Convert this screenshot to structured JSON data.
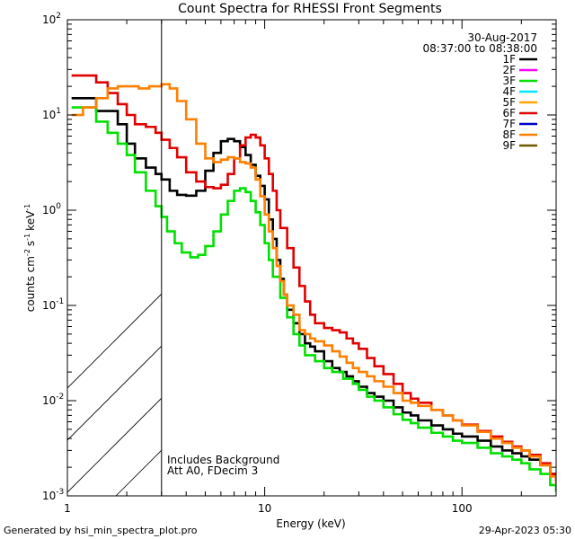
{
  "chart_data": {
    "type": "line",
    "title": "Count Spectra for RHESSI Front Segments",
    "xlabel": "Energy (keV)",
    "ylabel": "counts cm-2 s-1 keV-1",
    "xscale": "log",
    "yscale": "log",
    "xlim": [
      1,
      300
    ],
    "ylim": [
      0.001,
      100
    ],
    "x_ticks": [
      {
        "value": 10,
        "label": "10"
      },
      {
        "value": 100,
        "label": "100"
      }
    ],
    "y_ticks": [
      {
        "value": 0.001,
        "base": "10",
        "exp": "-3"
      },
      {
        "value": 0.01,
        "base": "10",
        "exp": "-2"
      },
      {
        "value": 0.1,
        "base": "10",
        "exp": "-1"
      },
      {
        "value": 1,
        "base": "10",
        "exp": "0"
      },
      {
        "value": 10,
        "base": "10",
        "exp": "1"
      },
      {
        "value": 100,
        "base": "10",
        "exp": "2"
      }
    ],
    "axis_start_label": "1",
    "attenuator_cutoff_keV": 3,
    "date": "30-Aug-2017",
    "time_range": "08:37:00 to 08:38:00",
    "annotations": [
      "Includes Background",
      "Att A0, FDecim 3"
    ],
    "legend": [
      {
        "name": "1F",
        "color": "#000000"
      },
      {
        "name": "2F",
        "color": "#ff00ff"
      },
      {
        "name": "3F",
        "color": "#00e000"
      },
      {
        "name": "4F",
        "color": "#00e5ff"
      },
      {
        "name": "5F",
        "color": "#ffa500"
      },
      {
        "name": "6F",
        "color": "#e00000"
      },
      {
        "name": "7F",
        "color": "#0000cc"
      },
      {
        "name": "8F",
        "color": "#ff8000"
      },
      {
        "name": "9F",
        "color": "#6b5a00"
      }
    ],
    "series": [
      {
        "name": "1F",
        "color": "#000000",
        "points": [
          [
            1.05,
            15
          ],
          [
            1.2,
            15
          ],
          [
            1.4,
            11
          ],
          [
            1.6,
            11
          ],
          [
            1.8,
            8
          ],
          [
            2.0,
            5
          ],
          [
            2.2,
            3.5
          ],
          [
            2.5,
            2.8
          ],
          [
            2.8,
            2.4
          ],
          [
            3.0,
            2.1
          ],
          [
            3.3,
            1.6
          ],
          [
            3.6,
            1.45
          ],
          [
            4.0,
            1.42
          ],
          [
            4.5,
            1.6
          ],
          [
            5.0,
            2.6
          ],
          [
            5.5,
            4.0
          ],
          [
            6.0,
            5.3
          ],
          [
            6.5,
            5.6
          ],
          [
            7.0,
            5.3
          ],
          [
            7.5,
            4.6
          ],
          [
            8.0,
            3.8
          ],
          [
            8.5,
            3.0
          ],
          [
            9.0,
            2.3
          ],
          [
            9.5,
            1.8
          ],
          [
            10,
            1.3
          ],
          [
            10.5,
            0.8
          ],
          [
            11,
            0.5
          ],
          [
            11.5,
            0.3
          ],
          [
            12,
            0.19
          ],
          [
            12.5,
            0.13
          ],
          [
            13,
            0.09
          ],
          [
            14,
            0.065
          ],
          [
            15,
            0.05
          ],
          [
            16,
            0.04
          ],
          [
            17,
            0.037
          ],
          [
            18,
            0.033
          ],
          [
            20,
            0.026
          ],
          [
            22,
            0.022
          ],
          [
            24,
            0.02
          ],
          [
            26,
            0.018
          ],
          [
            28,
            0.016
          ],
          [
            30,
            0.014
          ],
          [
            33,
            0.012
          ],
          [
            36,
            0.011
          ],
          [
            40,
            0.01
          ],
          [
            45,
            0.0085
          ],
          [
            50,
            0.0075
          ],
          [
            55,
            0.007
          ],
          [
            60,
            0.0062
          ],
          [
            70,
            0.0055
          ],
          [
            80,
            0.005
          ],
          [
            90,
            0.0045
          ],
          [
            100,
            0.0042
          ],
          [
            120,
            0.0038
          ],
          [
            140,
            0.0033
          ],
          [
            160,
            0.003
          ],
          [
            180,
            0.0028
          ],
          [
            200,
            0.0026
          ],
          [
            220,
            0.0024
          ],
          [
            250,
            0.0021
          ],
          [
            280,
            0.0017
          ],
          [
            300,
            0.0014
          ]
        ]
      },
      {
        "name": "3F",
        "color": "#00e000",
        "points": [
          [
            1.05,
            12
          ],
          [
            1.2,
            12
          ],
          [
            1.4,
            8.5
          ],
          [
            1.6,
            6.5
          ],
          [
            1.8,
            5
          ],
          [
            2.0,
            3.8
          ],
          [
            2.2,
            2.5
          ],
          [
            2.5,
            1.6
          ],
          [
            2.8,
            1.1
          ],
          [
            3.0,
            0.85
          ],
          [
            3.2,
            0.6
          ],
          [
            3.5,
            0.45
          ],
          [
            3.8,
            0.36
          ],
          [
            4.2,
            0.32
          ],
          [
            4.6,
            0.34
          ],
          [
            5.0,
            0.42
          ],
          [
            5.5,
            0.6
          ],
          [
            6.0,
            0.9
          ],
          [
            6.5,
            1.25
          ],
          [
            7.0,
            1.6
          ],
          [
            7.5,
            1.7
          ],
          [
            8.0,
            1.55
          ],
          [
            8.5,
            1.25
          ],
          [
            9.0,
            0.95
          ],
          [
            9.5,
            0.7
          ],
          [
            10,
            0.45
          ],
          [
            10.5,
            0.3
          ],
          [
            11,
            0.2
          ],
          [
            12,
            0.12
          ],
          [
            13,
            0.075
          ],
          [
            14,
            0.05
          ],
          [
            15,
            0.038
          ],
          [
            16,
            0.03
          ],
          [
            18,
            0.026
          ],
          [
            20,
            0.022
          ],
          [
            22,
            0.02
          ],
          [
            25,
            0.017
          ],
          [
            28,
            0.015
          ],
          [
            30,
            0.013
          ],
          [
            33,
            0.011
          ],
          [
            36,
            0.01
          ],
          [
            40,
            0.0085
          ],
          [
            45,
            0.0072
          ],
          [
            50,
            0.0063
          ],
          [
            55,
            0.0058
          ],
          [
            60,
            0.0052
          ],
          [
            70,
            0.0046
          ],
          [
            80,
            0.0042
          ],
          [
            90,
            0.0038
          ],
          [
            100,
            0.0036
          ],
          [
            120,
            0.0032
          ],
          [
            140,
            0.0028
          ],
          [
            160,
            0.0026
          ],
          [
            180,
            0.0024
          ],
          [
            200,
            0.0022
          ],
          [
            220,
            0.0019
          ],
          [
            250,
            0.0017
          ],
          [
            280,
            0.0013
          ],
          [
            300,
            0.0011
          ]
        ]
      },
      {
        "name": "6F",
        "color": "#e00000",
        "points": [
          [
            1.05,
            26
          ],
          [
            1.2,
            26
          ],
          [
            1.4,
            22
          ],
          [
            1.6,
            17
          ],
          [
            1.8,
            13
          ],
          [
            2.0,
            10
          ],
          [
            2.2,
            8
          ],
          [
            2.5,
            7.5
          ],
          [
            2.8,
            6.5
          ],
          [
            3.0,
            5.5
          ],
          [
            3.3,
            4.5
          ],
          [
            3.6,
            3.6
          ],
          [
            4.0,
            2.5
          ],
          [
            4.5,
            2.0
          ],
          [
            5.0,
            1.75
          ],
          [
            5.5,
            1.7
          ],
          [
            6.0,
            1.85
          ],
          [
            6.5,
            2.4
          ],
          [
            7.0,
            3.5
          ],
          [
            7.5,
            4.8
          ],
          [
            8.0,
            5.8
          ],
          [
            8.5,
            6.2
          ],
          [
            9.0,
            5.8
          ],
          [
            9.5,
            4.8
          ],
          [
            10,
            3.5
          ],
          [
            10.5,
            2.4
          ],
          [
            11,
            1.6
          ],
          [
            11.5,
            1.0
          ],
          [
            12,
            0.65
          ],
          [
            13,
            0.4
          ],
          [
            14,
            0.25
          ],
          [
            15,
            0.16
          ],
          [
            16,
            0.11
          ],
          [
            17,
            0.08
          ],
          [
            18,
            0.065
          ],
          [
            20,
            0.058
          ],
          [
            22,
            0.055
          ],
          [
            24,
            0.052
          ],
          [
            26,
            0.045
          ],
          [
            28,
            0.04
          ],
          [
            30,
            0.035
          ],
          [
            33,
            0.028
          ],
          [
            36,
            0.023
          ],
          [
            40,
            0.019
          ],
          [
            45,
            0.015
          ],
          [
            50,
            0.012
          ],
          [
            55,
            0.0105
          ],
          [
            60,
            0.0095
          ],
          [
            70,
            0.008
          ],
          [
            80,
            0.007
          ],
          [
            90,
            0.0062
          ],
          [
            100,
            0.0056
          ],
          [
            120,
            0.0048
          ],
          [
            140,
            0.0042
          ],
          [
            160,
            0.0037
          ],
          [
            180,
            0.0033
          ],
          [
            200,
            0.003
          ],
          [
            220,
            0.0027
          ],
          [
            250,
            0.0022
          ],
          [
            280,
            0.0017
          ],
          [
            300,
            0.0014
          ]
        ]
      },
      {
        "name": "8F",
        "color": "#ff8000",
        "points": [
          [
            1.05,
            10
          ],
          [
            1.2,
            12
          ],
          [
            1.4,
            15
          ],
          [
            1.6,
            19
          ],
          [
            1.8,
            20
          ],
          [
            2.0,
            20
          ],
          [
            2.3,
            19
          ],
          [
            2.6,
            20
          ],
          [
            3.0,
            21
          ],
          [
            3.3,
            19
          ],
          [
            3.6,
            14
          ],
          [
            4.0,
            9
          ],
          [
            4.5,
            5
          ],
          [
            5.0,
            3.5
          ],
          [
            5.5,
            3.2
          ],
          [
            6.0,
            3.4
          ],
          [
            6.5,
            3.6
          ],
          [
            7.0,
            3.5
          ],
          [
            7.5,
            3.2
          ],
          [
            8.0,
            3.1
          ],
          [
            8.5,
            2.8
          ],
          [
            9.0,
            2.1
          ],
          [
            9.5,
            1.4
          ],
          [
            10,
            0.9
          ],
          [
            10.5,
            0.6
          ],
          [
            11,
            0.4
          ],
          [
            11.5,
            0.26
          ],
          [
            12,
            0.18
          ],
          [
            12.5,
            0.13
          ],
          [
            13,
            0.1
          ],
          [
            14,
            0.08
          ],
          [
            15,
            0.055
          ],
          [
            16,
            0.05
          ],
          [
            17,
            0.045
          ],
          [
            18,
            0.042
          ],
          [
            20,
            0.038
          ],
          [
            22,
            0.033
          ],
          [
            24,
            0.029
          ],
          [
            26,
            0.025
          ],
          [
            28,
            0.022
          ],
          [
            30,
            0.02
          ],
          [
            33,
            0.018
          ],
          [
            36,
            0.016
          ],
          [
            40,
            0.014
          ],
          [
            45,
            0.012
          ],
          [
            50,
            0.01
          ],
          [
            55,
            0.0095
          ],
          [
            60,
            0.0088
          ],
          [
            70,
            0.008
          ],
          [
            80,
            0.007
          ],
          [
            90,
            0.0062
          ],
          [
            100,
            0.0055
          ],
          [
            120,
            0.0047
          ],
          [
            140,
            0.004
          ],
          [
            160,
            0.0036
          ],
          [
            180,
            0.0032
          ],
          [
            200,
            0.003
          ],
          [
            220,
            0.0026
          ],
          [
            250,
            0.0021
          ],
          [
            280,
            0.0016
          ],
          [
            300,
            0.0013
          ]
        ]
      }
    ]
  },
  "footer": {
    "generated_by": "Generated by hsi_min_spectra_plot.pro",
    "timestamp": "29-Apr-2023 05:30"
  }
}
